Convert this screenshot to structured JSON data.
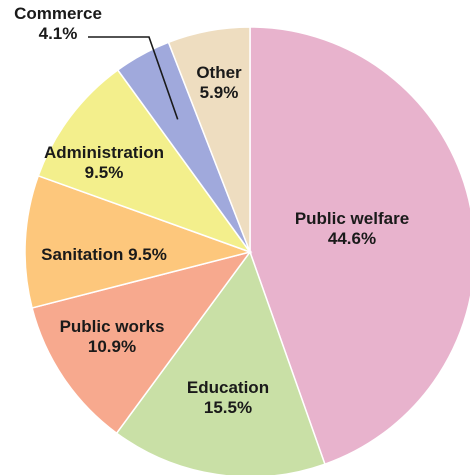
{
  "chart_data": {
    "type": "pie",
    "slices": [
      {
        "label": "Public welfare",
        "value": 44.6,
        "color": "#e8b3cd",
        "text": [
          "Public welfare",
          "44.6%"
        ]
      },
      {
        "label": "Education",
        "value": 15.5,
        "color": "#c9e0a6",
        "text": [
          "Education",
          "15.5%"
        ]
      },
      {
        "label": "Public works",
        "value": 10.9,
        "color": "#f7a98e",
        "text": [
          "Public works",
          "10.9%"
        ]
      },
      {
        "label": "Sanitation",
        "value": 9.5,
        "color": "#fdc77c",
        "text": [
          "Sanitation 9.5%"
        ]
      },
      {
        "label": "Administration",
        "value": 9.5,
        "color": "#f3ef8c",
        "text": [
          "Administration",
          "9.5%"
        ]
      },
      {
        "label": "Commerce",
        "value": 4.1,
        "color": "#a0a9dc",
        "text": [
          "Commerce",
          "4.1%"
        ]
      },
      {
        "label": "Other",
        "value": 5.9,
        "color": "#eeddc0",
        "text": [
          "Other",
          "5.9%"
        ]
      }
    ],
    "start": "12 o'clock",
    "direction": "clockwise"
  }
}
